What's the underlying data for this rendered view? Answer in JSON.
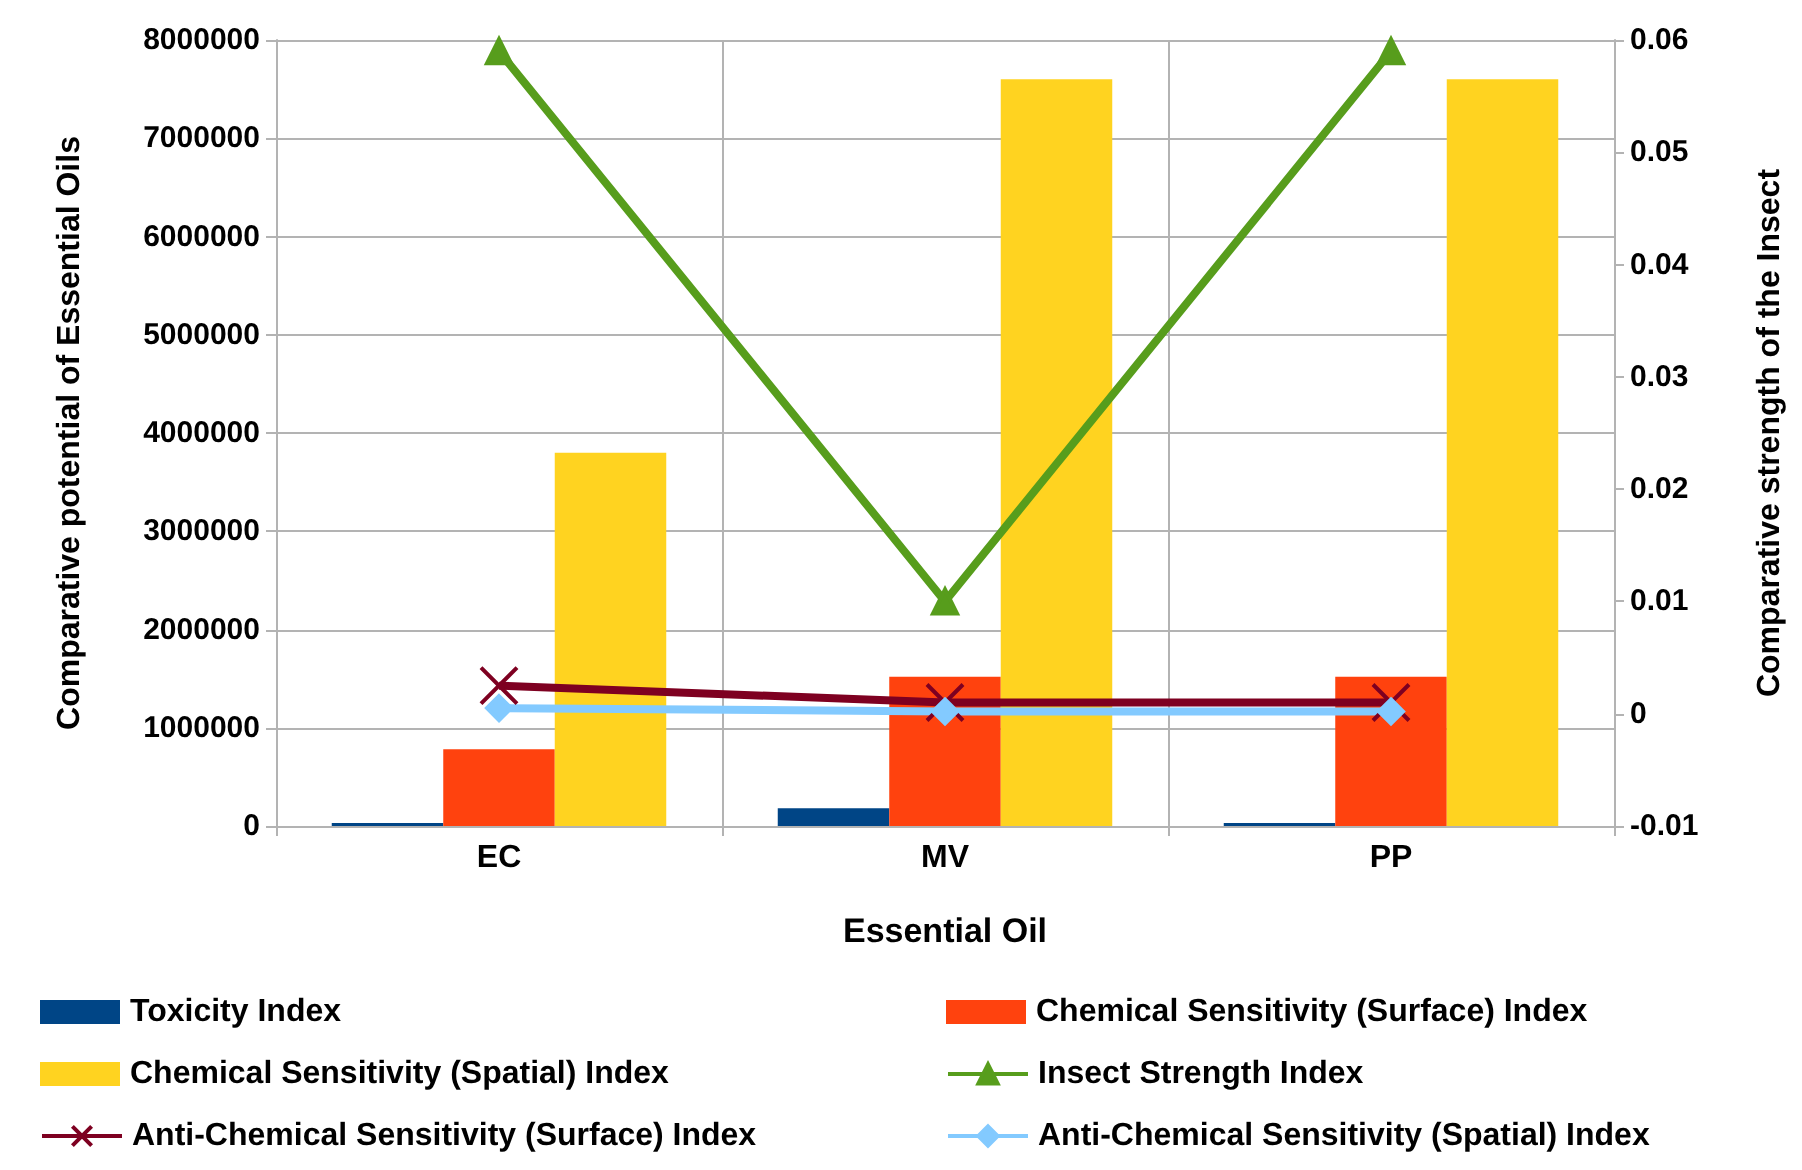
{
  "chart_data": {
    "type": "bar",
    "xlabel": "Essential Oil",
    "ylabel": "Comparative potential of Essential Oils",
    "y2label": "Comparative strength of the Insect",
    "categories": [
      "EC",
      "MV",
      "PP"
    ],
    "series": [
      {
        "name": "Toxicity Index",
        "color": "#004586",
        "values": [
          30000,
          180000,
          30000
        ]
      },
      {
        "name": "Chemical Sensitivity (Surface) Index",
        "color": "#ff420e",
        "values": [
          780000,
          1520000,
          1520000
        ]
      },
      {
        "name": "Chemical Sensitivity (Spatial) Index",
        "color": "#ffd320",
        "values": [
          3800000,
          7600000,
          7600000
        ]
      },
      {
        "name": "Insect Strength Index",
        "color": "#579d1c",
        "type": "line",
        "axis": "y2",
        "marker": "triangle",
        "values": [
          0.059,
          0.01,
          0.059
        ]
      },
      {
        "name": "Anti-Chemical Sensitivity (Surface) Index",
        "color": "#7e0021",
        "type": "line",
        "axis": "y2",
        "marker": "cross",
        "values": [
          0.0025,
          0.001,
          0.001
        ]
      },
      {
        "name": "Anti-Chemical Sensitivity (Spatial) Index",
        "color": "#83caff",
        "type": "line",
        "axis": "y2",
        "marker": "diamond",
        "values": [
          0.0005,
          0.0002,
          0.0002
        ]
      }
    ],
    "ylim": [
      0,
      8000000
    ],
    "yticks": [
      0,
      1000000,
      2000000,
      3000000,
      4000000,
      5000000,
      6000000,
      7000000,
      8000000
    ],
    "y2lim": [
      -0.01,
      0.06
    ],
    "y2ticks": [
      -0.01,
      0,
      0.01,
      0.02,
      0.03,
      0.04,
      0.05,
      0.06
    ],
    "grid": true,
    "legend": "bottom"
  }
}
